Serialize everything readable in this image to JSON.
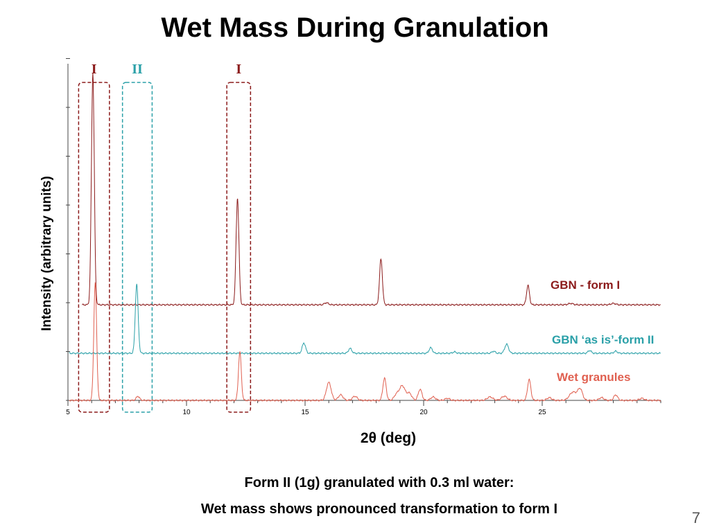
{
  "title": "Wet Mass During Granulation",
  "caption_line1": "Form II (1g) granulated with 0.3 ml water:",
  "caption_line2": "Wet mass shows pronounced transformation to form I",
  "page_number": "7",
  "chart_data": {
    "type": "line",
    "title": "",
    "xlabel": "2θ (deg)",
    "ylabel": "Intensity (arbitrary units)",
    "xlim": [
      5,
      30
    ],
    "xticks": [
      5,
      10,
      15,
      20,
      25
    ],
    "series": [
      {
        "name": "GBN - form I",
        "color": "#8b1a1a",
        "baseline": 440,
        "peaks": [
          {
            "x": 6.05,
            "height": 335,
            "width": 0.06
          },
          {
            "x": 12.15,
            "height": 154,
            "width": 0.06
          },
          {
            "x": 15.9,
            "height": 3,
            "width": 0.08
          },
          {
            "x": 18.2,
            "height": 66,
            "width": 0.06
          },
          {
            "x": 24.4,
            "height": 28,
            "width": 0.06
          },
          {
            "x": 26.2,
            "height": 2,
            "width": 0.1
          },
          {
            "x": 28.0,
            "height": 2,
            "width": 0.1
          }
        ]
      },
      {
        "name": "GBN ‘as is’-form II",
        "color": "#2aa0a8",
        "baseline": 510,
        "peaks": [
          {
            "x": 7.9,
            "height": 100,
            "width": 0.06
          },
          {
            "x": 14.95,
            "height": 15,
            "width": 0.07
          },
          {
            "x": 16.9,
            "height": 7,
            "width": 0.07
          },
          {
            "x": 20.3,
            "height": 8,
            "width": 0.07
          },
          {
            "x": 21.3,
            "height": 2,
            "width": 0.07
          },
          {
            "x": 22.95,
            "height": 3,
            "width": 0.07
          },
          {
            "x": 23.5,
            "height": 13,
            "width": 0.08
          },
          {
            "x": 27.0,
            "height": 4,
            "width": 0.07
          },
          {
            "x": 28.1,
            "height": 3,
            "width": 0.07
          }
        ]
      },
      {
        "name": "Wet granules",
        "color": "#e06050",
        "baseline": 578,
        "peaks": [
          {
            "x": 6.15,
            "height": 170,
            "width": 0.06
          },
          {
            "x": 7.95,
            "height": 6,
            "width": 0.07
          },
          {
            "x": 12.25,
            "height": 70,
            "width": 0.06
          },
          {
            "x": 16.0,
            "height": 26,
            "width": 0.1
          },
          {
            "x": 16.5,
            "height": 8,
            "width": 0.1
          },
          {
            "x": 17.1,
            "height": 6,
            "width": 0.1
          },
          {
            "x": 18.35,
            "height": 32,
            "width": 0.07
          },
          {
            "x": 18.85,
            "height": 8,
            "width": 0.1
          },
          {
            "x": 19.1,
            "height": 21,
            "width": 0.12
          },
          {
            "x": 19.4,
            "height": 10,
            "width": 0.1
          },
          {
            "x": 19.85,
            "height": 16,
            "width": 0.08
          },
          {
            "x": 20.4,
            "height": 5,
            "width": 0.1
          },
          {
            "x": 21.0,
            "height": 3,
            "width": 0.1
          },
          {
            "x": 22.8,
            "height": 5,
            "width": 0.12
          },
          {
            "x": 23.4,
            "height": 6,
            "width": 0.12
          },
          {
            "x": 24.45,
            "height": 30,
            "width": 0.07
          },
          {
            "x": 25.3,
            "height": 4,
            "width": 0.1
          },
          {
            "x": 26.3,
            "height": 12,
            "width": 0.15
          },
          {
            "x": 26.6,
            "height": 16,
            "width": 0.1
          },
          {
            "x": 27.5,
            "height": 4,
            "width": 0.1
          },
          {
            "x": 28.1,
            "height": 8,
            "width": 0.08
          },
          {
            "x": 29.2,
            "height": 3,
            "width": 0.1
          }
        ]
      }
    ],
    "annotations": [
      {
        "label": "I",
        "color": "#8b1a1a",
        "x_from": 5.45,
        "x_to": 6.75
      },
      {
        "label": "II",
        "color": "#2aa0a8",
        "x_from": 7.3,
        "x_to": 8.55
      },
      {
        "label": "I",
        "color": "#8b1a1a",
        "x_from": 11.7,
        "x_to": 12.7
      }
    ]
  }
}
